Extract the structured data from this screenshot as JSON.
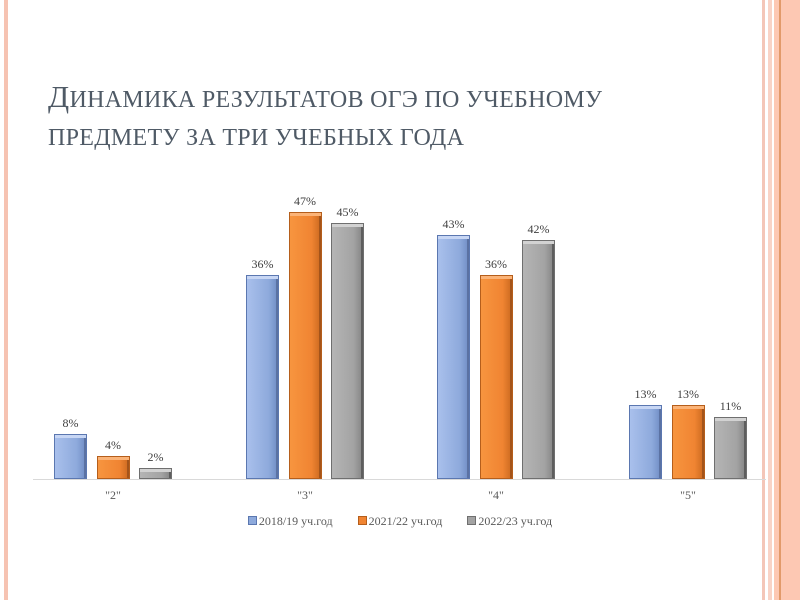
{
  "slide": {
    "title_line1_first": "Д",
    "title_line1_rest": "инамика результатов ОГЭ по учебному",
    "title_line2": "предмету за три учебных года"
  },
  "colors": {
    "title": "#4f5a66",
    "series_2018": "#8eaadc",
    "series_2021": "#f08432",
    "series_2022": "#a3a3a3",
    "border_accent": "#f6c3b2"
  },
  "chart_data": {
    "type": "bar",
    "title": "Динамика результатов ОГЭ по учебному предмету за три учебных года",
    "xlabel": "",
    "ylabel": "",
    "categories": [
      "\"2\"",
      "\"3\"",
      "\"4\"",
      "\"5\""
    ],
    "series": [
      {
        "name": "2018/19 уч.год",
        "values": [
          8,
          36,
          43,
          13
        ],
        "labels": [
          "8%",
          "36%",
          "43%",
          "13%"
        ]
      },
      {
        "name": "2021/22 уч.год",
        "values": [
          4,
          47,
          36,
          13
        ],
        "labels": [
          "4%",
          "47%",
          "36%",
          "13%"
        ]
      },
      {
        "name": "2022/23 уч.год",
        "values": [
          2,
          45,
          42,
          11
        ],
        "labels": [
          "2%",
          "45%",
          "42%",
          "11%"
        ]
      }
    ],
    "ylim": [
      0,
      50
    ],
    "grid": false,
    "legend_position": "bottom",
    "data_labels": true
  }
}
